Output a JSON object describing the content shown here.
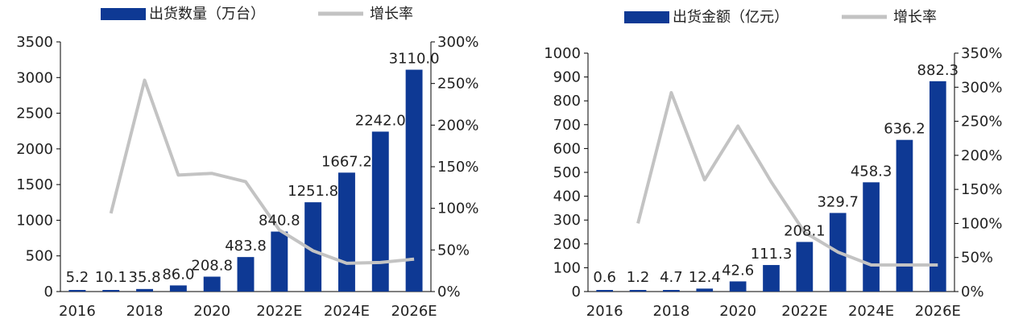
{
  "chart_data": [
    {
      "type": "bar",
      "categories": [
        "2016",
        "2017",
        "2018",
        "2019",
        "2020",
        "2021",
        "2022E",
        "2023E",
        "2024E",
        "2025E",
        "2026E"
      ],
      "x_tick_labels": [
        "2016",
        "2018",
        "2020",
        "2022E",
        "2024E",
        "2026E"
      ],
      "series": [
        {
          "name": "出货数量（万台）",
          "type": "bar",
          "axis": "left",
          "values": [
            5.2,
            10.1,
            35.8,
            86.0,
            208.8,
            483.8,
            840.8,
            1251.8,
            1667.2,
            2242.0,
            3110.0
          ],
          "data_labels": [
            "5.2",
            "10.1",
            "35.8",
            "86.0",
            "208.8",
            "483.8",
            "840.8",
            "1251.8",
            "1667.2",
            "2242.0",
            "3110.0"
          ]
        },
        {
          "name": "增长率",
          "type": "line",
          "axis": "right",
          "values": [
            null,
            94,
            254,
            140,
            142,
            132,
            74,
            49,
            34,
            35,
            39
          ]
        }
      ],
      "y_left": {
        "min": 0,
        "max": 3500,
        "step": 500,
        "tick_labels": [
          "0",
          "500",
          "1000",
          "1500",
          "2000",
          "2500",
          "3000",
          "3500"
        ]
      },
      "y_right": {
        "min": 0,
        "max": 300,
        "step": 50,
        "tick_labels": [
          "0%",
          "50%",
          "100%",
          "150%",
          "200%",
          "250%",
          "300%"
        ]
      },
      "grid": false,
      "legend_position": "top",
      "colors": {
        "bar": "#0e3994",
        "line": "#c3c3c3"
      }
    },
    {
      "type": "bar",
      "categories": [
        "2016",
        "2017",
        "2018",
        "2019",
        "2020",
        "2021",
        "2022E",
        "2023E",
        "2024E",
        "2025E",
        "2026E"
      ],
      "x_tick_labels": [
        "2016",
        "2018",
        "2020",
        "2022E",
        "2024E",
        "2026E"
      ],
      "series": [
        {
          "name": "出货金额（亿元）",
          "type": "bar",
          "axis": "left",
          "values": [
            0.6,
            1.2,
            4.7,
            12.4,
            42.6,
            111.3,
            208.1,
            329.7,
            458.3,
            636.2,
            882.3
          ],
          "data_labels": [
            "0.6",
            "1.2",
            "4.7",
            "12.4",
            "42.6",
            "111.3",
            "208.1",
            "329.7",
            "458.3",
            "636.2",
            "882.3"
          ]
        },
        {
          "name": "增长率",
          "type": "line",
          "axis": "right",
          "values": [
            null,
            100,
            292,
            164,
            243,
            161,
            87,
            58,
            39,
            39,
            39
          ]
        }
      ],
      "y_left": {
        "min": 0,
        "max": 1000,
        "step": 100,
        "tick_labels": [
          "0",
          "100",
          "200",
          "300",
          "400",
          "500",
          "600",
          "700",
          "800",
          "900",
          "1000"
        ]
      },
      "y_right": {
        "min": 0,
        "max": 350,
        "step": 50,
        "tick_labels": [
          "0%",
          "50%",
          "100%",
          "150%",
          "200%",
          "250%",
          "300%",
          "350%"
        ]
      },
      "grid": false,
      "legend_position": "top",
      "colors": {
        "bar": "#0e3994",
        "line": "#c3c3c3"
      }
    }
  ]
}
